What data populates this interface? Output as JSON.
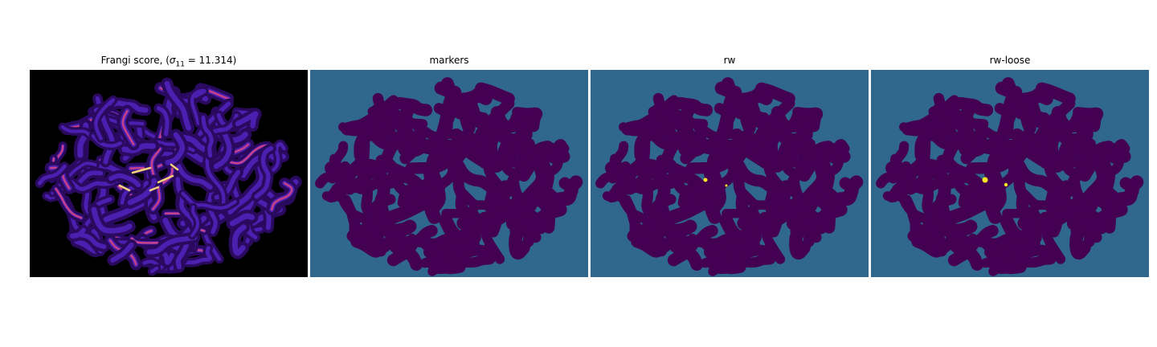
{
  "panels": [
    {
      "title_prefix": "Frangi score, (",
      "title_sigma": "σ",
      "title_sub": "11",
      "title_suffix": " = 11.314)",
      "kind": "frangi"
    },
    {
      "title": "markers",
      "kind": "markers"
    },
    {
      "title": "rw",
      "kind": "rw"
    },
    {
      "title": "rw-loose",
      "kind": "rw-loose"
    }
  ],
  "colors": {
    "frangi_bg": "#000000",
    "frangi_low": "#2a0a5e",
    "frangi_mid": "#4b1fb0",
    "frangi_hot": "#c8408a",
    "frangi_peak": "#f7d27a",
    "label_bg": "#30678d",
    "label_mask": "#440154",
    "label_highlight": "#fde725"
  }
}
